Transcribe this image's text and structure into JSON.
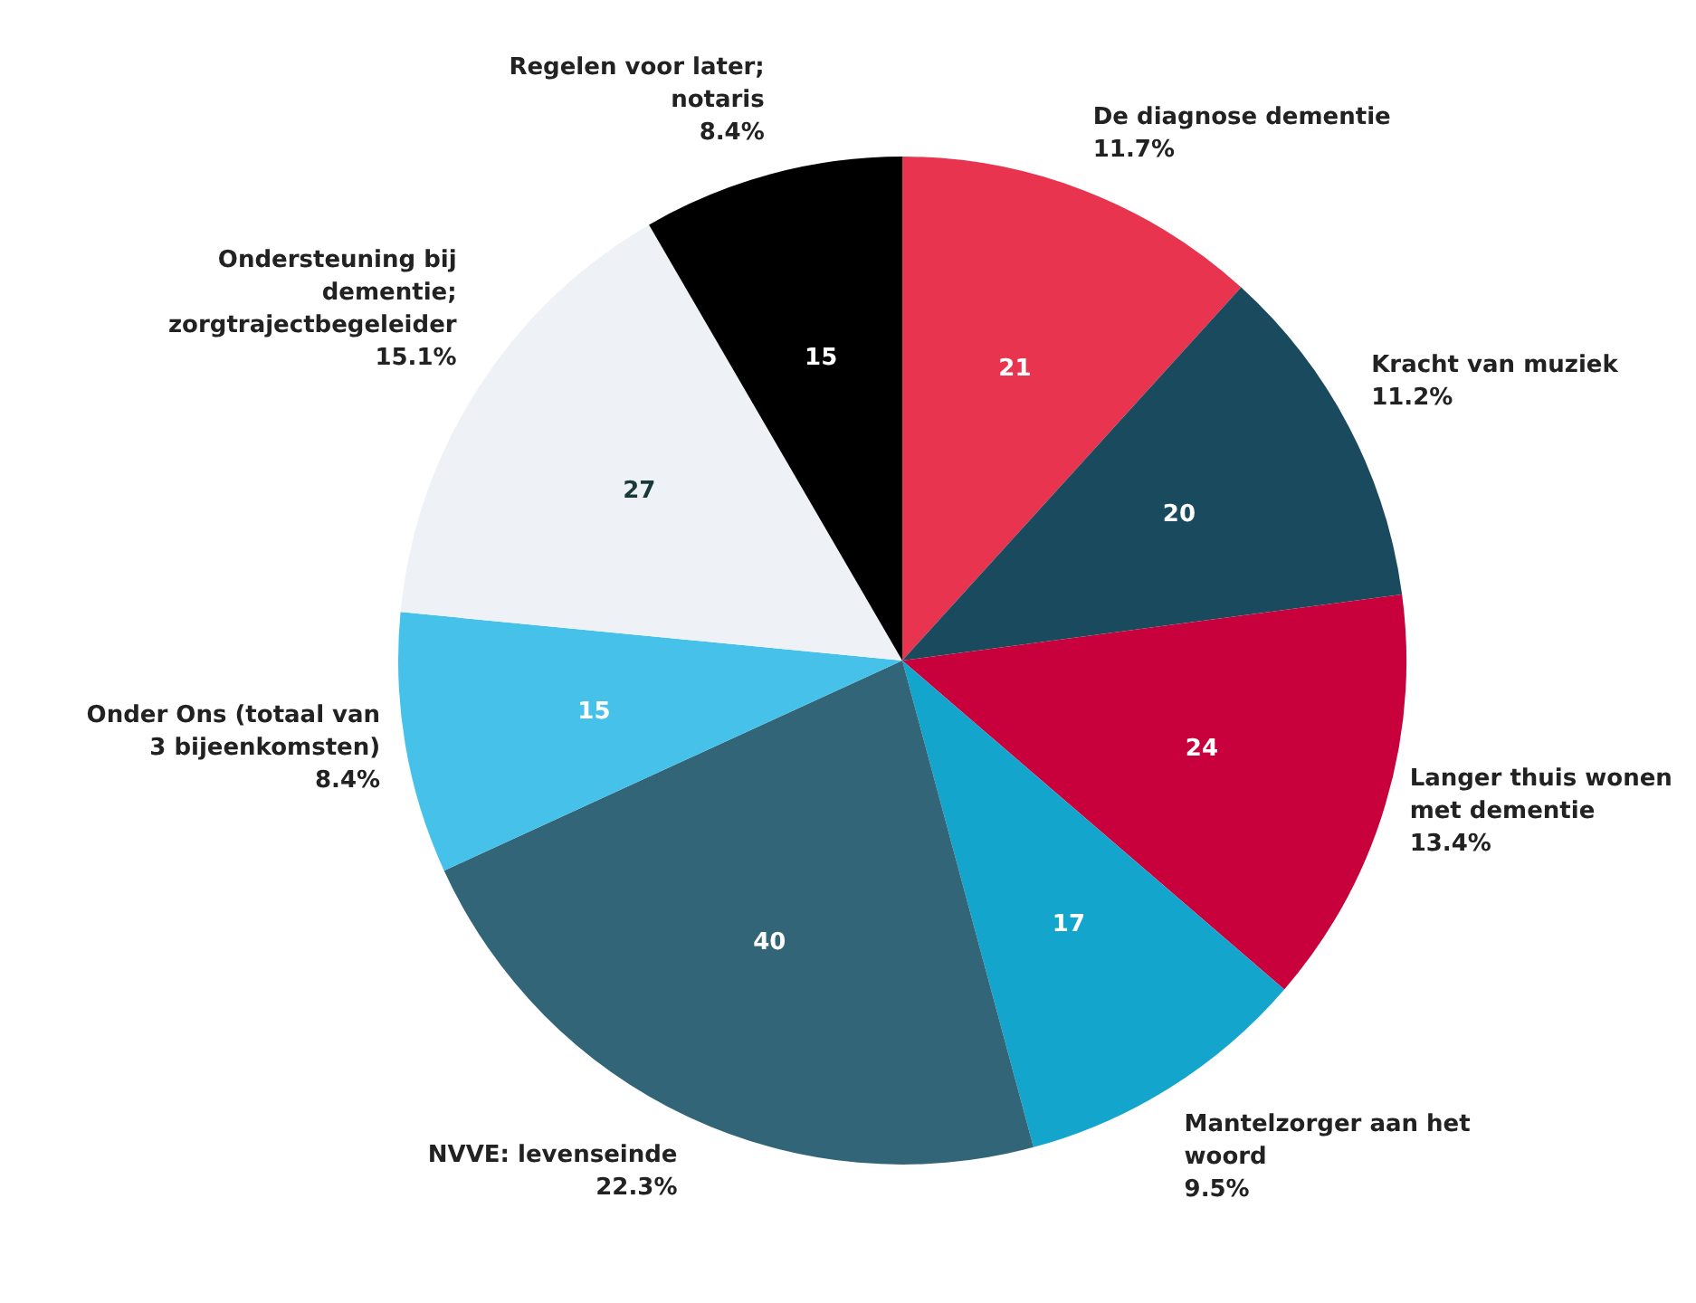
{
  "chart_data": {
    "type": "pie",
    "categories": [
      "De diagnose dementie",
      "Kracht van muziek",
      "Langer thuis wonen met dementie",
      "Mantelzorger aan het woord",
      "NVVE: levenseinde",
      "Onder Ons (totaal van 3 bijeenkomsten)",
      "Ondersteuning bij dementie; zorgtrajectbegeleider",
      "Regelen voor later; notaris"
    ],
    "values": [
      21,
      20,
      24,
      17,
      40,
      15,
      27,
      15
    ],
    "colors": [
      "#e8344e",
      "#1a4a5e",
      "#c8003c",
      "#14a5cc",
      "#336578",
      "#45c1ea",
      "#eef2f7",
      "#000000"
    ],
    "data_labels": true,
    "annotations": [
      "11.7%",
      "11.2%",
      "13.4%",
      "9.5%",
      "22.3%",
      "8.4%",
      "15.1%",
      "8.4%"
    ],
    "legend": false
  }
}
